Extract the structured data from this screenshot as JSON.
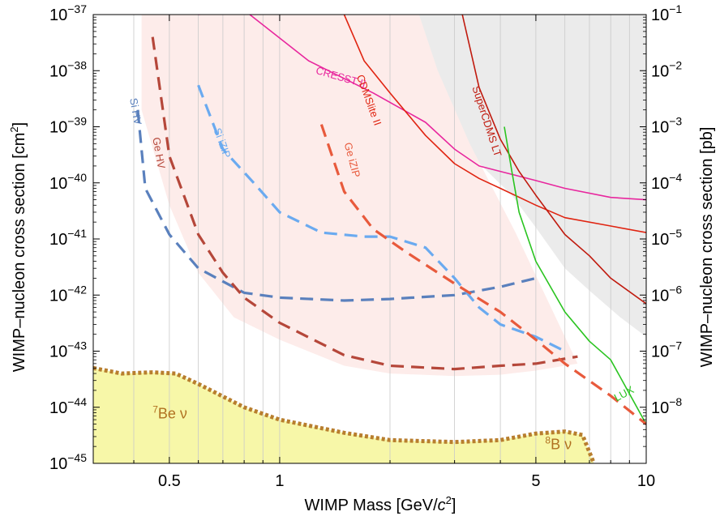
{
  "chart_data": {
    "type": "line",
    "xlabel": "WIMP Mass [GeV/c²]",
    "ylabel": "WIMP–nucleon cross section [cm²]",
    "ylabel_right": "WIMP–nucleon cross section [pb]",
    "xscale": "log",
    "yscale": "log",
    "xlim": [
      0.31,
      10
    ],
    "ylim": [
      1e-45,
      1e-37
    ],
    "grid": "x-minor",
    "x_ticks": [
      {
        "value": 0.5,
        "label": "0.5"
      },
      {
        "value": 1,
        "label": "1"
      },
      {
        "value": 5,
        "label": "5"
      },
      {
        "value": 10,
        "label": "10"
      }
    ],
    "y_ticks_left": [
      {
        "exp": -45,
        "base": "10",
        "sup": "−45"
      },
      {
        "exp": -44,
        "base": "10",
        "sup": "−44"
      },
      {
        "exp": -43,
        "base": "10",
        "sup": "−43"
      },
      {
        "exp": -42,
        "base": "10",
        "sup": "−42"
      },
      {
        "exp": -41,
        "base": "10",
        "sup": "−41"
      },
      {
        "exp": -40,
        "base": "10",
        "sup": "−40"
      },
      {
        "exp": -39,
        "base": "10",
        "sup": "−39"
      },
      {
        "exp": -38,
        "base": "10",
        "sup": "−38"
      },
      {
        "exp": -37,
        "base": "10",
        "sup": "−37"
      }
    ],
    "y_ticks_right": [
      {
        "exp": -44,
        "base": "10",
        "sup": "−8"
      },
      {
        "exp": -43,
        "base": "10",
        "sup": "−7"
      },
      {
        "exp": -42,
        "base": "10",
        "sup": "−6"
      },
      {
        "exp": -41,
        "base": "10",
        "sup": "−5"
      },
      {
        "exp": -40,
        "base": "10",
        "sup": "−4"
      },
      {
        "exp": -39,
        "base": "10",
        "sup": "−3"
      },
      {
        "exp": -38,
        "base": "10",
        "sup": "−2"
      },
      {
        "exp": -37,
        "base": "10",
        "sup": "−1"
      }
    ],
    "regions": [
      {
        "name": "excluded",
        "color": "#ebebeb",
        "points": [
          [
            1.19,
            1e-37
          ],
          [
            1.8,
            8e-39
          ],
          [
            2.5,
            1.6e-39
          ],
          [
            3.2,
            4e-40
          ],
          [
            4.3,
            6e-41
          ],
          [
            5,
            1.6e-41
          ],
          [
            6,
            3e-42
          ],
          [
            7,
            1.2e-42
          ],
          [
            8.5,
            4e-43
          ],
          [
            10,
            1.8e-43
          ],
          [
            10,
            1e-37
          ]
        ]
      },
      {
        "name": "projected-sensitivity",
        "color": "#fdecea",
        "points": [
          [
            0.42,
            1e-37
          ],
          [
            0.42,
            2e-39
          ],
          [
            0.5,
            4e-41
          ],
          [
            0.6,
            2.5e-42
          ],
          [
            0.75,
            4e-43
          ],
          [
            1,
            1.6e-43
          ],
          [
            1.5,
            5.5e-44
          ],
          [
            2,
            4e-44
          ],
          [
            3,
            3.6e-44
          ],
          [
            4,
            3.8e-44
          ],
          [
            5,
            4.5e-44
          ],
          [
            6.5,
            6e-44
          ],
          [
            4.4,
            1.3e-41
          ],
          [
            3.3,
            5e-40
          ],
          [
            2.7,
            1e-38
          ],
          [
            2.4,
            1e-37
          ]
        ]
      },
      {
        "name": "neutrino-floor",
        "color": "#f7f7a8",
        "points": [
          [
            0.31,
            5e-44
          ],
          [
            0.37,
            4e-44
          ],
          [
            0.45,
            4.2e-44
          ],
          [
            0.52,
            4e-44
          ],
          [
            0.6,
            2.6e-44
          ],
          [
            0.8,
            1e-44
          ],
          [
            1,
            6e-45
          ],
          [
            1.5,
            3.5e-45
          ],
          [
            2,
            2.6e-45
          ],
          [
            3,
            2.4e-45
          ],
          [
            4,
            2.6e-45
          ],
          [
            5,
            3.4e-45
          ],
          [
            6,
            3.7e-45
          ],
          [
            6.7,
            3.2e-45
          ],
          [
            7.2,
            1e-45
          ],
          [
            0.31,
            1e-45
          ]
        ]
      }
    ],
    "series": [
      {
        "name": "CRESST II",
        "color": "#e8279e",
        "style": "solid",
        "width": 1.6,
        "points": [
          [
            0.6,
            1e-37
          ],
          [
            0.8,
            1.2e-37
          ],
          [
            1.2,
            1.5e-38
          ],
          [
            1.8,
            4e-39
          ],
          [
            2.5,
            1.2e-39
          ],
          [
            3,
            4e-40
          ],
          [
            3.5,
            2e-40
          ],
          [
            4,
            1.6e-40
          ],
          [
            5,
            1.1e-40
          ],
          [
            6,
            8e-41
          ],
          [
            8,
            5.5e-41
          ],
          [
            10,
            5e-41
          ]
        ]
      },
      {
        "name": "CDMSlite II",
        "color": "#e02411",
        "style": "solid",
        "width": 1.6,
        "points": [
          [
            1.5,
            1e-37
          ],
          [
            1.7,
            1.5e-38
          ],
          [
            2,
            4e-39
          ],
          [
            2.5,
            7e-40
          ],
          [
            3,
            2.2e-40
          ],
          [
            3.5,
            1.2e-40
          ],
          [
            4,
            8e-41
          ],
          [
            5,
            4e-41
          ],
          [
            6,
            2.4e-41
          ],
          [
            8,
            1.7e-41
          ],
          [
            10,
            1.3e-41
          ]
        ]
      },
      {
        "name": "SuperCDMS LT",
        "color": "#c01a0e",
        "style": "solid",
        "width": 1.6,
        "points": [
          [
            3.15,
            1e-37
          ],
          [
            3.5,
            5e-39
          ],
          [
            4,
            6e-40
          ],
          [
            4.5,
            1.6e-40
          ],
          [
            5,
            6e-41
          ],
          [
            6,
            1.2e-41
          ],
          [
            7,
            5e-42
          ],
          [
            8,
            2e-42
          ],
          [
            10,
            7e-43
          ]
        ]
      },
      {
        "name": "LUX",
        "color": "#2ac420",
        "style": "solid",
        "width": 1.6,
        "points": [
          [
            4.1,
            1e-39
          ],
          [
            4.3,
            1.6e-40
          ],
          [
            4.5,
            3e-41
          ],
          [
            5,
            4e-42
          ],
          [
            6,
            5e-43
          ],
          [
            7,
            1.5e-43
          ],
          [
            8,
            7e-44
          ],
          [
            10,
            5e-45
          ]
        ]
      },
      {
        "name": "Si HV",
        "color": "#5a80bd",
        "style": "dashed",
        "width": 3.2,
        "points": [
          [
            0.41,
            2e-39
          ],
          [
            0.43,
            8e-41
          ],
          [
            0.5,
            1.2e-41
          ],
          [
            0.6,
            3e-42
          ],
          [
            0.8,
            1.1e-42
          ],
          [
            1,
            9e-43
          ],
          [
            1.5,
            8e-43
          ],
          [
            2,
            8.5e-43
          ],
          [
            3,
            1e-42
          ],
          [
            4,
            1.4e-42
          ],
          [
            5,
            2e-42
          ]
        ]
      },
      {
        "name": "Ge HV",
        "color": "#b5473a",
        "style": "dashed",
        "width": 3.2,
        "points": [
          [
            0.45,
            4e-38
          ],
          [
            0.5,
            3e-40
          ],
          [
            0.6,
            1.2e-41
          ],
          [
            0.7,
            2.5e-42
          ],
          [
            0.8,
            9e-43
          ],
          [
            1,
            3.2e-43
          ],
          [
            1.5,
            8.5e-44
          ],
          [
            2,
            5.5e-44
          ],
          [
            3,
            4.8e-44
          ],
          [
            4,
            5.5e-44
          ],
          [
            5,
            6e-44
          ],
          [
            6.5,
            8e-44
          ]
        ]
      },
      {
        "name": "Si iZIP",
        "color": "#6aaaf0",
        "style": "dashed",
        "width": 3.2,
        "points": [
          [
            0.6,
            5.5e-39
          ],
          [
            0.7,
            4e-40
          ],
          [
            0.85,
            1e-40
          ],
          [
            1,
            3e-41
          ],
          [
            1.3,
            1.3e-41
          ],
          [
            1.7,
            1.1e-41
          ],
          [
            2,
            1.1e-41
          ],
          [
            2.5,
            7e-42
          ],
          [
            3,
            2e-42
          ],
          [
            3.5,
            6e-43
          ],
          [
            4,
            3e-43
          ],
          [
            5,
            1.8e-43
          ],
          [
            6,
            1e-43
          ]
        ]
      },
      {
        "name": "Ge iZIP",
        "color": "#e85a3c",
        "style": "dashed",
        "width": 3.2,
        "points": [
          [
            1.3,
            1.1e-39
          ],
          [
            1.5,
            7e-41
          ],
          [
            1.8,
            1.5e-41
          ],
          [
            2.2,
            6e-42
          ],
          [
            3,
            1.6e-42
          ],
          [
            4,
            5e-43
          ],
          [
            5,
            1.6e-43
          ],
          [
            6,
            6e-44
          ],
          [
            8,
            1.6e-44
          ],
          [
            10,
            5e-45
          ]
        ]
      },
      {
        "name": "7Be ν",
        "color": "#b87e2e",
        "style": "dotted",
        "width": 5,
        "points": [
          [
            0.31,
            5e-44
          ],
          [
            0.37,
            4e-44
          ],
          [
            0.45,
            4.2e-44
          ],
          [
            0.52,
            4e-44
          ],
          [
            0.6,
            2.6e-44
          ],
          [
            0.8,
            1e-44
          ],
          [
            1,
            6e-45
          ],
          [
            1.5,
            3.5e-45
          ],
          [
            2,
            2.6e-45
          ],
          [
            3,
            2.4e-45
          ],
          [
            4,
            2.6e-45
          ],
          [
            5,
            3.4e-45
          ],
          [
            6,
            3.7e-45
          ],
          [
            6.7,
            3.2e-45
          ],
          [
            7.2,
            1e-45
          ]
        ]
      }
    ],
    "curve_labels": [
      {
        "text": "CRESST II",
        "x": 1.25,
        "exp": -38.05,
        "angle": 16,
        "color": "#e8279e"
      },
      {
        "text": "CDMSlite II",
        "x": 1.62,
        "exp": -38.1,
        "angle": 70,
        "color": "#e02411"
      },
      {
        "text": "SuperCDMS LT",
        "x": 3.35,
        "exp": -38.3,
        "angle": 72,
        "color": "#c01a0e"
      },
      {
        "text": "Si HV",
        "x": 0.39,
        "exp": -38.5,
        "angle": 80,
        "color": "#5a80bd"
      },
      {
        "text": "Ge HV",
        "x": 0.45,
        "exp": -39.2,
        "angle": 80,
        "color": "#b5473a"
      },
      {
        "text": "Si iZIP",
        "x": 0.66,
        "exp": -39.05,
        "angle": 70,
        "color": "#6aaaf0"
      },
      {
        "text": "Ge iZIP",
        "x": 1.5,
        "exp": -39.3,
        "angle": 75,
        "color": "#e85a3c"
      },
      {
        "text": "LUX",
        "x": 8.3,
        "exp": -43.9,
        "angle": -28,
        "color": "#2ac420"
      }
    ],
    "region_labels": [
      {
        "text": "7Be ν",
        "sup": "7",
        "main": "Be ν",
        "x": 0.45,
        "exp": -44.2,
        "color": "#b07020"
      },
      {
        "text": "8B ν",
        "sup": "8",
        "main": "B ν",
        "x": 5.3,
        "exp": -44.75,
        "color": "#b07020"
      }
    ]
  }
}
